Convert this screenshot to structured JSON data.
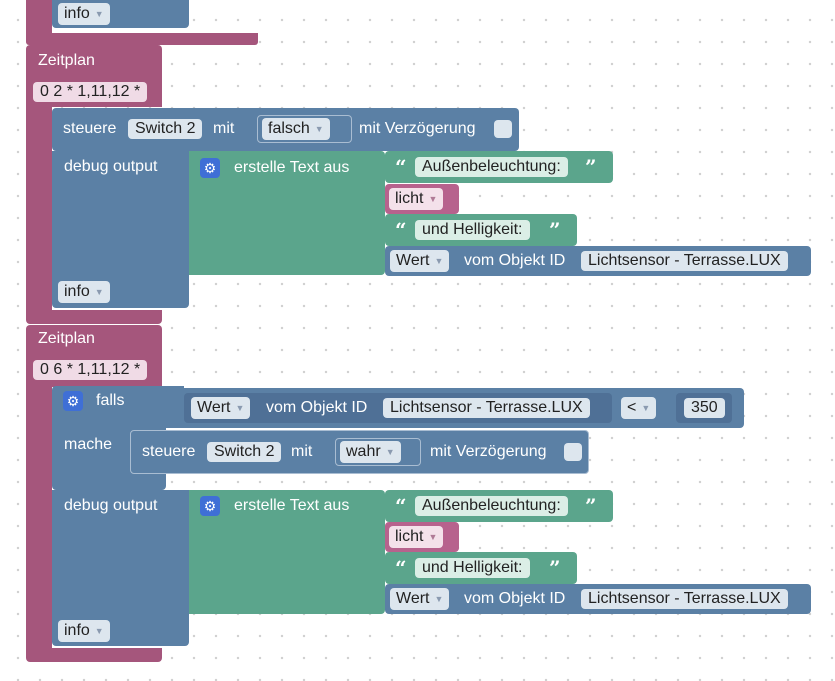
{
  "block0": {
    "info_label": "info"
  },
  "schedule1": {
    "title": "Zeitplan",
    "cron": "0 2 * 1,11,12 *",
    "control": {
      "label_prefix": "steuere",
      "device": "Switch 2",
      "label_with": "mit",
      "value": "falsch",
      "label_delay": "mit Verzögerung"
    },
    "debug": {
      "label": "debug output",
      "text_join_label": "erstelle Text aus",
      "text1": "Außenbeleuchtung:",
      "variable": "licht",
      "text2": "und Helligkeit:",
      "value_prop": "Wert",
      "object_label": "vom Objekt ID",
      "object_id": "Lichtsensor - Terrasse.LUX"
    },
    "info_label": "info"
  },
  "schedule2": {
    "title": "Zeitplan",
    "cron": "0 6 * 1,11,12 *",
    "if_label": "falls",
    "do_label": "mache",
    "condition": {
      "value_prop": "Wert",
      "object_label": "vom Objekt ID",
      "object_id": "Lichtsensor - Terrasse.LUX",
      "operator": "<",
      "number": "350"
    },
    "control": {
      "label_prefix": "steuere",
      "device": "Switch 2",
      "label_with": "mit",
      "value": "wahr",
      "label_delay": "mit Verzögerung"
    },
    "debug": {
      "label": "debug output",
      "text_join_label": "erstelle Text aus",
      "text1": "Außenbeleuchtung:",
      "variable": "licht",
      "text2": "und Helligkeit:",
      "value_prop": "Wert",
      "object_label": "vom Objekt ID",
      "object_id": "Lichtsensor - Terrasse.LUX"
    },
    "info_label": "info"
  },
  "colors": {
    "event_pink": "#a5567c",
    "action_blue": "#5b80a5",
    "text_green": "#5ba58c",
    "variable_pink": "#b7628d",
    "gear_blue": "#3f6fd6"
  },
  "icons": {
    "dropdown": "triangle-down",
    "mutator": "gear-icon",
    "quote_open": "left-quote",
    "quote_close": "right-quote"
  }
}
